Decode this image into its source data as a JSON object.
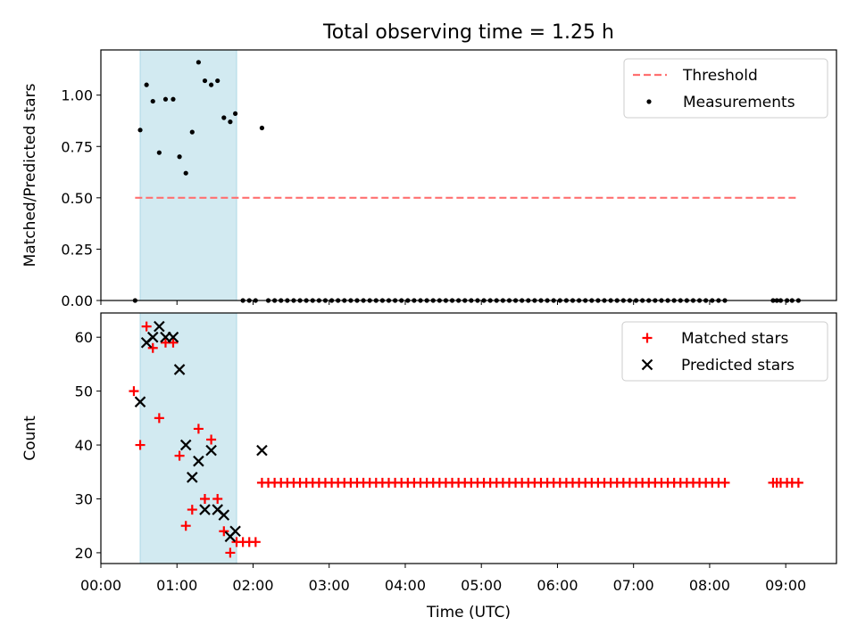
{
  "title": "Total observing time = 1.25 h",
  "chart_data": [
    {
      "type": "scatter",
      "ylabel": "Matched/Predicted stars",
      "ylim": [
        0,
        1.22
      ],
      "xlim": [
        "00:00",
        "09:40"
      ],
      "yticks": [
        0.0,
        0.25,
        0.5,
        0.75,
        1.0
      ],
      "ytick_labels": [
        "0.00",
        "0.25",
        "0.50",
        "0.75",
        "1.00"
      ],
      "shaded_span": {
        "start": "00:31",
        "end": "01:47",
        "color": "#add8e6"
      },
      "threshold": {
        "name": "Threshold",
        "value": 0.5,
        "start": "00:27",
        "end": "09:10",
        "color": "#ff7070"
      },
      "legend_position": "upper right",
      "legend": [
        "Threshold",
        "Measurements"
      ],
      "series": [
        {
          "name": "Measurements",
          "color": "#000000",
          "marker": "dot",
          "points": [
            [
              "00:27",
              0.0
            ],
            [
              "00:31",
              0.83
            ],
            [
              "00:36",
              1.05
            ],
            [
              "00:41",
              0.97
            ],
            [
              "00:46",
              0.72
            ],
            [
              "00:51",
              0.98
            ],
            [
              "00:57",
              0.98
            ],
            [
              "01:02",
              0.7
            ],
            [
              "01:07",
              0.62
            ],
            [
              "01:12",
              0.82
            ],
            [
              "01:17",
              1.16
            ],
            [
              "01:22",
              1.07
            ],
            [
              "01:27",
              1.05
            ],
            [
              "01:32",
              1.07
            ],
            [
              "01:37",
              0.89
            ],
            [
              "01:42",
              0.87
            ],
            [
              "01:46",
              0.91
            ],
            [
              "01:52",
              0.0
            ],
            [
              "01:57",
              0.0
            ],
            [
              "02:02",
              0.0
            ],
            [
              "02:07",
              0.84
            ]
          ],
          "zero_run": {
            "from": "02:12",
            "to": "08:15",
            "step_minutes": 5,
            "value": 0.0
          },
          "zero_tail": [
            "08:50",
            "08:53",
            "08:56",
            "09:01",
            "09:05",
            "09:10"
          ]
        }
      ]
    },
    {
      "type": "scatter",
      "ylabel": "Count",
      "xlabel": "Time (UTC)",
      "ylim": [
        18,
        64.5
      ],
      "xlim": [
        "00:00",
        "09:40"
      ],
      "yticks": [
        20,
        30,
        40,
        50,
        60
      ],
      "xtick_labels": [
        "00:00",
        "01:00",
        "02:00",
        "03:00",
        "04:00",
        "05:00",
        "06:00",
        "07:00",
        "08:00",
        "09:00"
      ],
      "shaded_span": {
        "start": "00:31",
        "end": "01:47",
        "color": "#add8e6"
      },
      "legend_position": "upper right",
      "legend": [
        "Matched stars",
        "Predicted stars"
      ],
      "series": [
        {
          "name": "Matched stars",
          "color": "#ff0000",
          "marker": "plus",
          "points": [
            [
              "00:26",
              50
            ],
            [
              "00:31",
              40
            ],
            [
              "00:36",
              62
            ],
            [
              "00:41",
              58
            ],
            [
              "00:46",
              45
            ],
            [
              "00:51",
              59
            ],
            [
              "00:57",
              59
            ],
            [
              "01:02",
              38
            ],
            [
              "01:07",
              25
            ],
            [
              "01:12",
              28
            ],
            [
              "01:17",
              43
            ],
            [
              "01:22",
              30
            ],
            [
              "01:27",
              41
            ],
            [
              "01:32",
              30
            ],
            [
              "01:37",
              24
            ],
            [
              "01:42",
              20
            ],
            [
              "01:47",
              22
            ],
            [
              "01:52",
              22
            ],
            [
              "01:57",
              22
            ],
            [
              "02:02",
              22
            ]
          ],
          "constant_run": {
            "from": "02:07",
            "to": "08:15",
            "step_minutes": 5,
            "value": 33
          },
          "constant_tail": [
            "08:50",
            "08:53",
            "08:56",
            "09:01",
            "09:05",
            "09:10"
          ]
        },
        {
          "name": "Predicted stars",
          "color": "#000000",
          "marker": "x",
          "points": [
            [
              "00:31",
              48
            ],
            [
              "00:36",
              59
            ],
            [
              "00:41",
              60
            ],
            [
              "00:46",
              62
            ],
            [
              "00:51",
              60
            ],
            [
              "00:57",
              60
            ],
            [
              "01:02",
              54
            ],
            [
              "01:07",
              40
            ],
            [
              "01:12",
              34
            ],
            [
              "01:17",
              37
            ],
            [
              "01:22",
              28
            ],
            [
              "01:27",
              39
            ],
            [
              "01:32",
              28
            ],
            [
              "01:37",
              27
            ],
            [
              "01:42",
              23
            ],
            [
              "01:46",
              24
            ],
            [
              "02:07",
              39
            ]
          ]
        }
      ]
    }
  ]
}
